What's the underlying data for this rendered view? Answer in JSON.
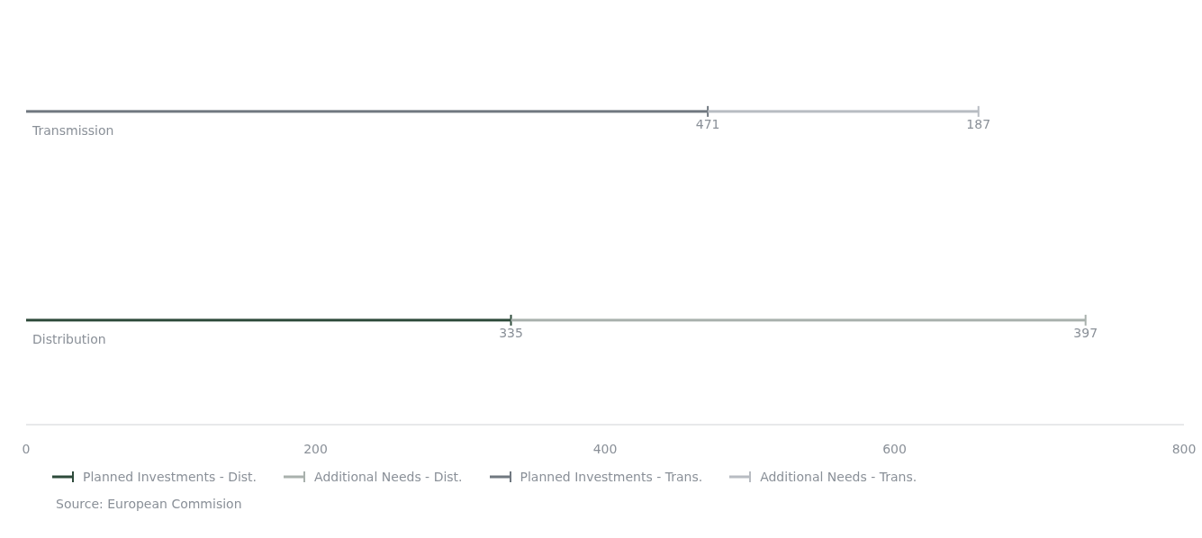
{
  "chart_data": {
    "type": "bar",
    "orientation": "horizontal",
    "stacked": true,
    "categories": [
      "Transmission",
      "Distribution"
    ],
    "series": [
      {
        "name": "Planned Investments - Dist.",
        "color": "#2d4a3a",
        "values": [
          null,
          335
        ]
      },
      {
        "name": "Additional Needs - Dist.",
        "color": "#a9b1ad",
        "values": [
          null,
          397
        ]
      },
      {
        "name": "Planned Investments - Trans.",
        "color": "#707880",
        "values": [
          471,
          null
        ]
      },
      {
        "name": "Additional Needs - Trans.",
        "color": "#b8bcc2",
        "values": [
          187,
          null
        ]
      }
    ],
    "xlim": [
      0,
      800
    ],
    "xticks": [
      0,
      200,
      400,
      600,
      800
    ],
    "grid": false,
    "legend": "bottom left",
    "data_labels": true,
    "annotations": [
      "Source: European Commision"
    ]
  }
}
